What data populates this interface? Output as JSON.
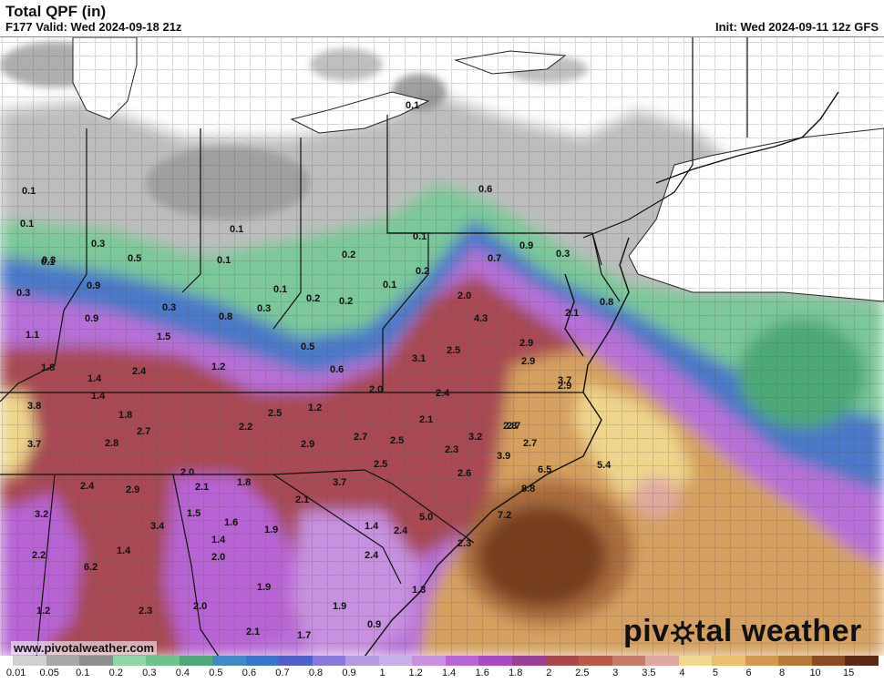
{
  "header": {
    "title": "Total QPF (in)",
    "valid": "F177 Valid: Wed 2024-09-18 21z",
    "init": "Init: Wed 2024-09-11 12z GFS"
  },
  "footer": {
    "url": "www.pivotalweather.com",
    "brand_left": "piv",
    "brand_right": "tal weather"
  },
  "legend": {
    "labels": [
      "0.01",
      "0.05",
      "0.1",
      "0.2",
      "0.3",
      "0.4",
      "0.5",
      "0.6",
      "0.7",
      "0.8",
      "0.9",
      "1",
      "1.2",
      "1.4",
      "1.6",
      "1.8",
      "2",
      "2.5",
      "3",
      "3.5",
      "4",
      "5",
      "6",
      "8",
      "10",
      "15"
    ],
    "colors": [
      "#d0d0d0",
      "#a8a8a8",
      "#8e8e8e",
      "#8fd6a8",
      "#6cc48c",
      "#4ea878",
      "#3f8cc4",
      "#3a74c8",
      "#4f5fc8",
      "#8a78d8",
      "#b49ae0",
      "#c8b0e8",
      "#c890e0",
      "#b864d4",
      "#a84ac4",
      "#9c3e94",
      "#a84848",
      "#b85a4a",
      "#c87a6a",
      "#e0a8a0",
      "#f0d890",
      "#e8c070",
      "#d49850",
      "#b8783a",
      "#8a4a24",
      "#5a2a14"
    ]
  },
  "map": {
    "labels": [
      "0.1",
      "0.1",
      "0.1",
      "0.6",
      "0.1",
      "0.9",
      "0.3",
      "0.1",
      "0.7",
      "0.3",
      "0.2",
      "0.1",
      "0.2",
      "0.1",
      "0.1",
      "0.8",
      "0.1",
      "0.3",
      "0.5",
      "0.3",
      "0.9",
      "0.2",
      "0.2",
      "2.0",
      "2.1",
      "0.3",
      "0.9",
      "0.8",
      "0.3",
      "4.3",
      "1.1",
      "1.5",
      "0.5",
      "2.9",
      "1.8",
      "2.4",
      "1.2",
      "3.1",
      "2.5",
      "2.9",
      "0.6",
      "3.7",
      "1.4",
      "2.0",
      "2.9",
      "2.4",
      "1.4",
      "1.2",
      "3.8",
      "1.8",
      "2.7",
      "2.2",
      "2.5",
      "2.1",
      "3.7",
      "2.8",
      "2.7",
      "2.9",
      "2.7",
      "2.5",
      "3.2",
      "2.8",
      "2.7",
      "2.3",
      "3.9",
      "2.5",
      "6.5",
      "2.0",
      "2.6",
      "5.4",
      "2.4",
      "2.9",
      "1.8",
      "2.1",
      "3.7",
      "8.8",
      "2.1",
      "3.2",
      "1.6",
      "1.5",
      "1.9",
      "3.4",
      "1.4",
      "7.2",
      "1.4",
      "2.4",
      "5.0",
      "2.2",
      "2.3",
      "1.4",
      "6.2",
      "2.0",
      "2.4",
      "1.9",
      "1.3",
      "1.2",
      "2.3",
      "2.0",
      "1.9",
      "2.1",
      "1.7",
      "0.9",
      "0.9"
    ]
  }
}
